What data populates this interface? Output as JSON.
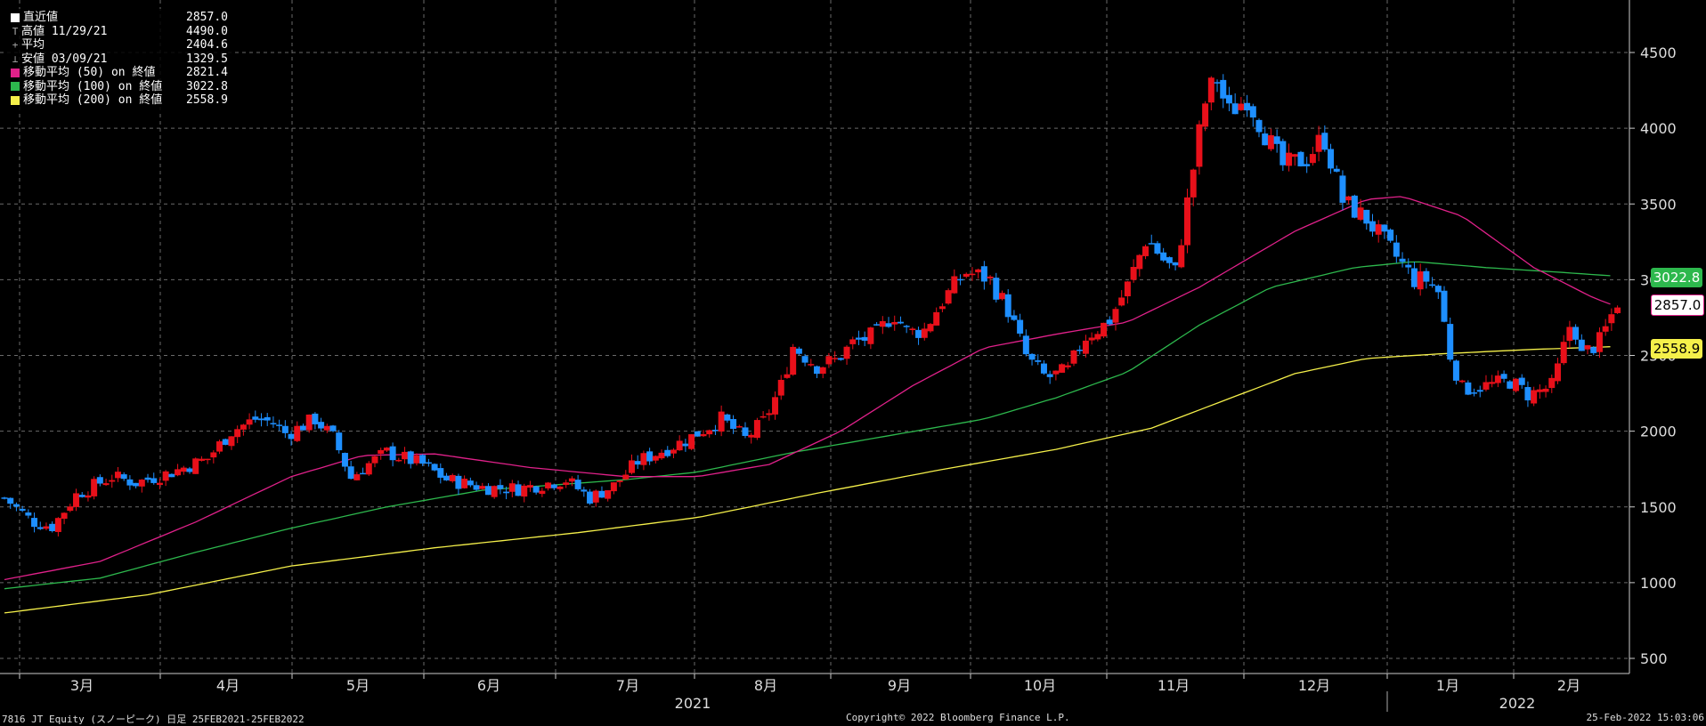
{
  "legend": [
    {
      "label": "直近値",
      "value": "2857.0",
      "color": "#ffffff",
      "mark": "square"
    },
    {
      "label": "高値 11/29/21",
      "value": "4490.0",
      "color": "#aaaaaa",
      "mark": "T"
    },
    {
      "label": "平均",
      "value": "2404.6",
      "color": "#aaaaaa",
      "mark": "+"
    },
    {
      "label": "安値 03/09/21",
      "value": "1329.5",
      "color": "#aaaaaa",
      "mark": "⊥"
    },
    {
      "label": "移動平均 (50) on 終値",
      "value": "2821.4",
      "color": "#e0218a",
      "mark": "square"
    },
    {
      "label": "移動平均 (100) on 終値",
      "value": "3022.8",
      "color": "#2db84d",
      "mark": "square"
    },
    {
      "label": "移動平均 (200) on 終値",
      "value": "2558.9",
      "color": "#f5f04a",
      "mark": "square"
    }
  ],
  "flags": {
    "ma100": "3022.8",
    "last": "2857.0",
    "ma200": "2558.9"
  },
  "footer": {
    "left": "7816 JT Equity (スノーピーク)  日足 25FEB2021-25FEB2022",
    "center": "Copyright© 2022 Bloomberg Finance L.P.",
    "right": "25-Feb-2022 15:03:06"
  },
  "colors": {
    "background": "#000000",
    "up": "#e8101a",
    "down": "#1e8fff",
    "ma50": "#e0218a",
    "ma100": "#2db84d",
    "ma200": "#f5f04a",
    "grid": "#6a6a6a"
  },
  "chart_data": {
    "type": "candlestick",
    "y_ticks": [
      500,
      1000,
      1500,
      2000,
      2500,
      3000,
      3500,
      4000,
      4500
    ],
    "ylim": [
      420,
      4850
    ],
    "grid": true,
    "legend_placement": "top-left",
    "x_ticks": [
      "3月",
      "4月",
      "5月",
      "6月",
      "7月",
      "8月",
      "9月",
      "10月",
      "11月",
      "12月",
      "1月",
      "2月"
    ],
    "year_labels": [
      "2021",
      "2022"
    ],
    "price_path": [
      [
        0,
        1560
      ],
      [
        12,
        1400
      ],
      [
        20,
        1370
      ],
      [
        30,
        1580
      ],
      [
        45,
        1700
      ],
      [
        55,
        1660
      ],
      [
        70,
        1730
      ],
      [
        85,
        1820
      ],
      [
        95,
        2000
      ],
      [
        105,
        2080
      ],
      [
        112,
        2060
      ],
      [
        118,
        1980
      ],
      [
        130,
        2080
      ],
      [
        138,
        1950
      ],
      [
        145,
        1690
      ],
      [
        150,
        1760
      ],
      [
        160,
        1860
      ],
      [
        175,
        1780
      ],
      [
        185,
        1680
      ],
      [
        200,
        1630
      ],
      [
        215,
        1620
      ],
      [
        235,
        1680
      ],
      [
        245,
        1560
      ],
      [
        255,
        1640
      ],
      [
        265,
        1800
      ],
      [
        285,
        1940
      ],
      [
        300,
        2080
      ],
      [
        310,
        1950
      ],
      [
        318,
        2070
      ],
      [
        325,
        2300
      ],
      [
        330,
        2560
      ],
      [
        340,
        2430
      ],
      [
        348,
        2470
      ],
      [
        355,
        2580
      ],
      [
        365,
        2640
      ],
      [
        372,
        2780
      ],
      [
        378,
        2650
      ],
      [
        385,
        2670
      ],
      [
        392,
        2850
      ],
      [
        402,
        3050
      ],
      [
        412,
        3010
      ],
      [
        420,
        2800
      ],
      [
        428,
        2480
      ],
      [
        436,
        2350
      ],
      [
        445,
        2400
      ],
      [
        452,
        2620
      ],
      [
        462,
        2720
      ],
      [
        470,
        2960
      ],
      [
        478,
        3280
      ],
      [
        485,
        3130
      ],
      [
        490,
        3050
      ],
      [
        496,
        3600
      ],
      [
        502,
        4150
      ],
      [
        507,
        4350
      ],
      [
        512,
        4100
      ],
      [
        520,
        4200
      ],
      [
        528,
        3950
      ],
      [
        535,
        3750
      ],
      [
        545,
        3800
      ],
      [
        552,
        3950
      ],
      [
        560,
        3520
      ],
      [
        570,
        3400
      ],
      [
        580,
        3200
      ],
      [
        590,
        3000
      ],
      [
        595,
        3000
      ],
      [
        600,
        2920
      ],
      [
        605,
        2500
      ],
      [
        610,
        2280
      ],
      [
        620,
        2300
      ],
      [
        630,
        2330
      ],
      [
        638,
        2240
      ],
      [
        648,
        2300
      ],
      [
        656,
        2750
      ],
      [
        660,
        2500
      ],
      [
        668,
        2600
      ],
      [
        675,
        2857
      ]
    ],
    "ma50": [
      [
        0,
        1020
      ],
      [
        40,
        1140
      ],
      [
        80,
        1400
      ],
      [
        120,
        1700
      ],
      [
        150,
        1840
      ],
      [
        180,
        1850
      ],
      [
        220,
        1760
      ],
      [
        260,
        1700
      ],
      [
        290,
        1700
      ],
      [
        320,
        1780
      ],
      [
        350,
        2000
      ],
      [
        380,
        2300
      ],
      [
        410,
        2550
      ],
      [
        440,
        2640
      ],
      [
        470,
        2720
      ],
      [
        500,
        2950
      ],
      [
        540,
        3320
      ],
      [
        570,
        3530
      ],
      [
        585,
        3550
      ],
      [
        610,
        3420
      ],
      [
        640,
        3080
      ],
      [
        665,
        2880
      ],
      [
        675,
        2821.4
      ]
    ],
    "ma100": [
      [
        0,
        960
      ],
      [
        40,
        1030
      ],
      [
        80,
        1200
      ],
      [
        120,
        1360
      ],
      [
        160,
        1500
      ],
      [
        200,
        1610
      ],
      [
        260,
        1680
      ],
      [
        290,
        1730
      ],
      [
        330,
        1860
      ],
      [
        370,
        1970
      ],
      [
        410,
        2080
      ],
      [
        440,
        2220
      ],
      [
        470,
        2390
      ],
      [
        500,
        2700
      ],
      [
        530,
        2950
      ],
      [
        565,
        3080
      ],
      [
        590,
        3120
      ],
      [
        620,
        3080
      ],
      [
        650,
        3050
      ],
      [
        675,
        3022.8
      ]
    ],
    "ma200": [
      [
        0,
        800
      ],
      [
        60,
        920
      ],
      [
        120,
        1110
      ],
      [
        180,
        1230
      ],
      [
        240,
        1330
      ],
      [
        290,
        1430
      ],
      [
        340,
        1590
      ],
      [
        390,
        1740
      ],
      [
        440,
        1880
      ],
      [
        480,
        2020
      ],
      [
        510,
        2200
      ],
      [
        540,
        2380
      ],
      [
        570,
        2480
      ],
      [
        600,
        2510
      ],
      [
        640,
        2540
      ],
      [
        675,
        2558.9
      ]
    ]
  }
}
